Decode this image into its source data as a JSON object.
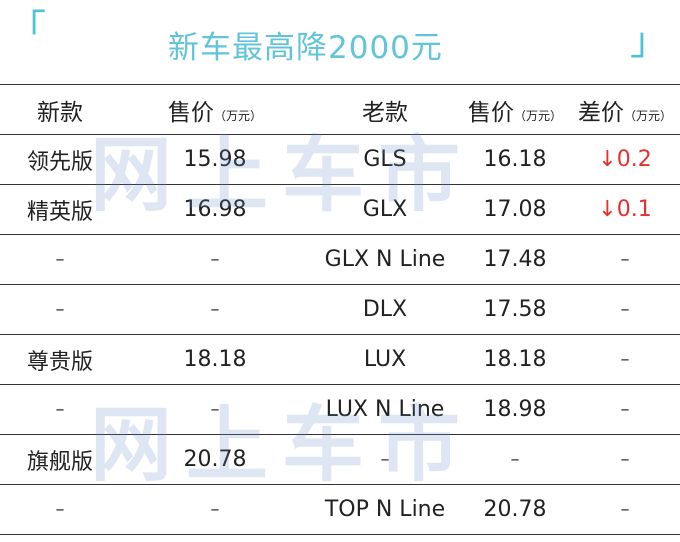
{
  "title": {
    "left_bracket": "「",
    "right_bracket": "」",
    "text": "新车最高降2000元"
  },
  "watermark": "网上车市",
  "table": {
    "headers": [
      {
        "main": "新款",
        "unit": ""
      },
      {
        "main": "售价",
        "unit": "（万元）"
      },
      {
        "main": "老款",
        "unit": ""
      },
      {
        "main": "售价",
        "unit": "（万元）"
      },
      {
        "main": "差价",
        "unit": "（万元）"
      }
    ],
    "rows": [
      [
        "领先版",
        "15.98",
        "GLS",
        "16.18",
        "↓0.2"
      ],
      [
        "精英版",
        "16.98",
        "GLX",
        "17.08",
        "↓0.1"
      ],
      [
        "–",
        "–",
        "GLX N Line",
        "17.48",
        "–"
      ],
      [
        "–",
        "–",
        "DLX",
        "17.58",
        "–"
      ],
      [
        "尊贵版",
        "18.18",
        "LUX",
        "18.18",
        "–"
      ],
      [
        "–",
        "–",
        "LUX N Line",
        "18.98",
        "–"
      ],
      [
        "旗舰版",
        "20.78",
        "–",
        "–",
        "–"
      ],
      [
        "–",
        "–",
        "TOP N Line",
        "20.78",
        "–"
      ]
    ]
  },
  "colors": {
    "title": "#62c4d9",
    "bracket": "#4fc1d9",
    "diff_down": "#e53030"
  }
}
